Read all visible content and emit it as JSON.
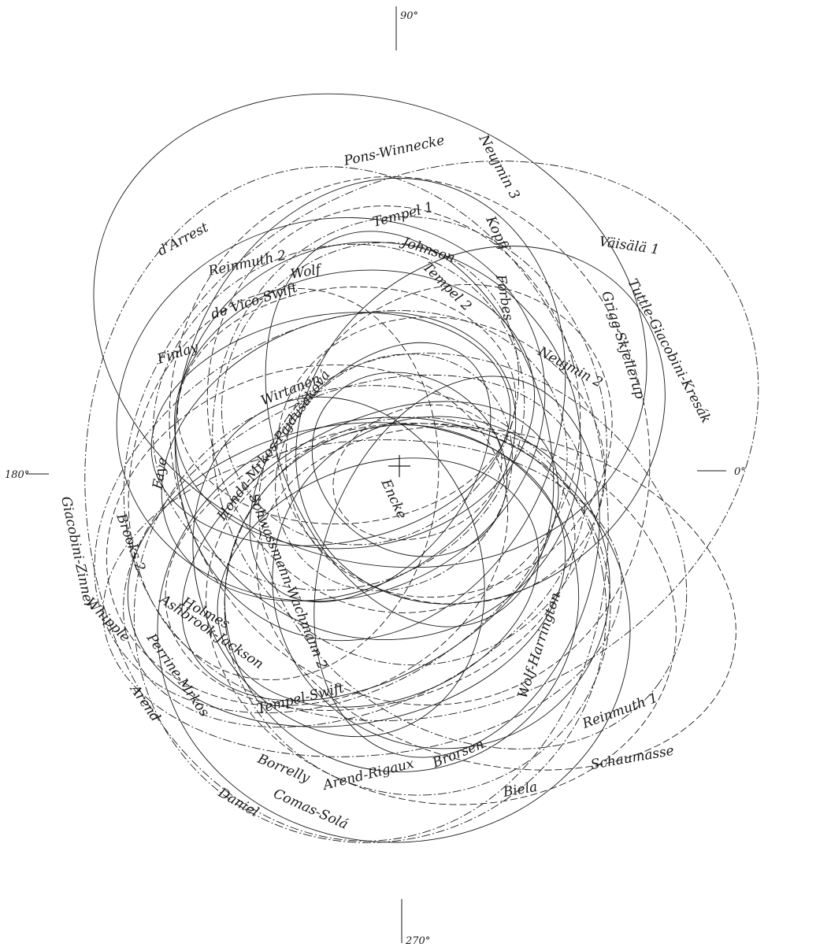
{
  "axis_labels": {
    "top": "90°",
    "left": "180°",
    "right": "0°",
    "bottom": "270°"
  },
  "comets": [
    "Pons-Winnecke",
    "Neujmin 3",
    "Tempel 1",
    "Johnson",
    "Kopff",
    "Väisälä 1",
    "d'Arrest",
    "Reinmuth 2",
    "Tempel 2",
    "Wolf",
    "Forbes",
    "Tuttle-Giacobini-Kresák",
    "de Vico-Swift",
    "Grigg-Skjellerup",
    "Finlay",
    "Neujmin 2",
    "Wirtanen",
    "Honda-Mrkos-Pajdušáková",
    "Faye",
    "Encke",
    "Giacobini-Zinner",
    "Brooks 2",
    "Schwassmann-Wachmann 2",
    "Whipple",
    "Holmes",
    "Ashbrook-Jackson",
    "Wolf-Harrington",
    "Perrine-Mrkos",
    "Arend",
    "Tempel-Swift",
    "Reinmuth 1",
    "Brorsen",
    "Schaumasse",
    "Borrelly",
    "Arend-Rigaux",
    "Biela",
    "Daniel",
    "Comas-Solá"
  ]
}
